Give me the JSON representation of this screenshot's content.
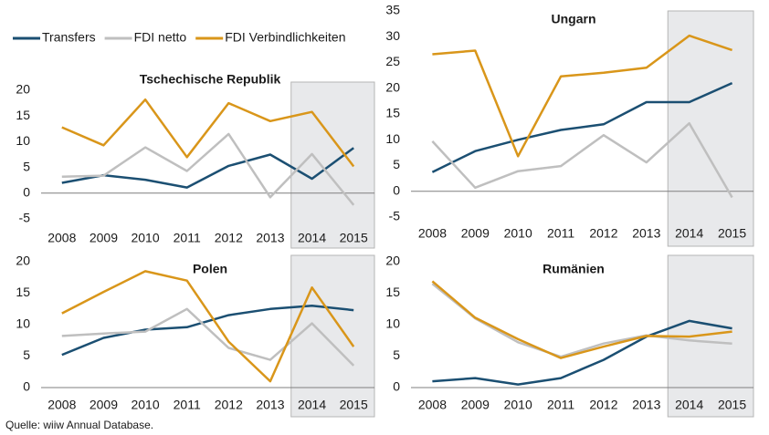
{
  "chart_data": [
    {
      "type": "line",
      "title": "Tschechische Republik",
      "categories": [
        "2008",
        "2009",
        "2010",
        "2011",
        "2012",
        "2013",
        "2014",
        "2015"
      ],
      "ylim": [
        -5,
        20
      ],
      "yticks": [
        -5,
        0,
        5,
        10,
        15,
        20
      ],
      "series": [
        {
          "name": "Transfers",
          "color": "#1b4f72",
          "values": [
            2,
            3.5,
            2.6,
            1.1,
            5.3,
            7.5,
            2.8,
            8.8
          ]
        },
        {
          "name": "FDI netto",
          "color": "#bfbfbf",
          "values": [
            3.2,
            3.4,
            8.9,
            4.3,
            11.5,
            -0.8,
            7.6,
            -2.3
          ]
        },
        {
          "name": "FDI Verbindlichkeiten",
          "color": "#d9961a",
          "values": [
            12.8,
            9.3,
            18.2,
            7,
            17.5,
            14,
            15.8,
            5.2
          ]
        }
      ]
    },
    {
      "type": "line",
      "title": "Ungarn",
      "categories": [
        "2008",
        "2009",
        "2010",
        "2011",
        "2012",
        "2013",
        "2014",
        "2015"
      ],
      "ylim": [
        -5,
        35
      ],
      "yticks": [
        -5,
        0,
        5,
        10,
        15,
        20,
        25,
        30,
        35
      ],
      "series": [
        {
          "values": [
            3.7,
            7.8,
            10,
            11.9,
            13,
            17.3,
            17.3,
            21
          ]
        },
        {
          "values": [
            9.7,
            0.7,
            3.9,
            4.9,
            10.9,
            5.6,
            13.2,
            -1.2
          ]
        },
        {
          "values": [
            26.6,
            27.3,
            6.8,
            22.3,
            23,
            24,
            30.2,
            27.4
          ]
        }
      ]
    },
    {
      "type": "line",
      "title": "Polen",
      "categories": [
        "2008",
        "2009",
        "2010",
        "2011",
        "2012",
        "2013",
        "2014",
        "2015"
      ],
      "ylim": [
        0,
        20
      ],
      "yticks": [
        0,
        5,
        10,
        15,
        20
      ],
      "series": [
        {
          "values": [
            5.2,
            7.9,
            9.2,
            9.6,
            11.5,
            12.5,
            13,
            12.3
          ]
        },
        {
          "values": [
            8.2,
            8.6,
            8.9,
            12.5,
            6.3,
            4.4,
            10.2,
            3.5
          ]
        },
        {
          "values": [
            11.8,
            15.2,
            18.5,
            17,
            7.3,
            1,
            15.9,
            6.5
          ]
        }
      ]
    },
    {
      "type": "line",
      "title": "Rumänien",
      "categories": [
        "2008",
        "2009",
        "2010",
        "2011",
        "2012",
        "2013",
        "2014",
        "2015"
      ],
      "ylim": [
        0,
        20
      ],
      "yticks": [
        0,
        5,
        10,
        15,
        20
      ],
      "series": [
        {
          "values": [
            1,
            1.5,
            0.5,
            1.5,
            4.4,
            8.1,
            10.6,
            9.4
          ]
        },
        {
          "values": [
            16.5,
            11,
            7.2,
            4.9,
            7,
            8.3,
            7.5,
            7
          ]
        },
        {
          "values": [
            16.9,
            11.1,
            7.7,
            4.7,
            6.5,
            8.2,
            8.1,
            8.9
          ]
        }
      ]
    }
  ],
  "source": "Quelle: wiiw Annual Database."
}
